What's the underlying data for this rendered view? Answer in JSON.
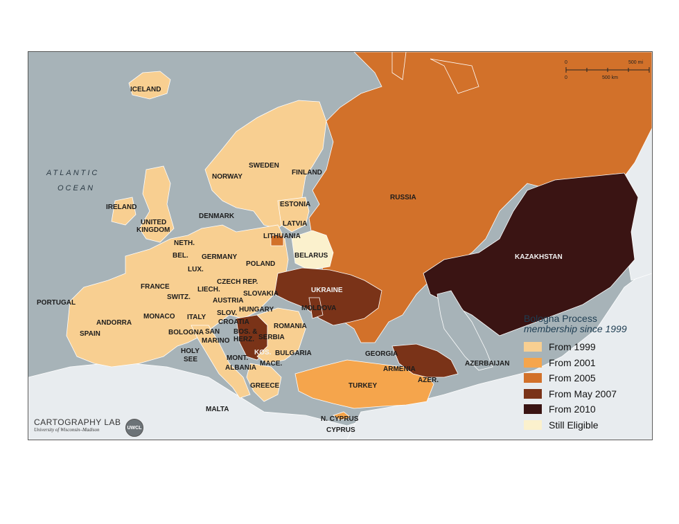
{
  "colors": {
    "sea": "#a7b3b8",
    "non_member": "#e8ecef",
    "from_1999": "#f8cf91",
    "from_2001": "#f5a54c",
    "from_2005": "#d2712a",
    "from_may_2007": "#7a3318",
    "from_2010": "#3a1413",
    "still_eligible": "#fbf1cd"
  },
  "legend": {
    "title": "Bologna Process",
    "subtitle": "membership since 1999",
    "items": [
      {
        "key": "from_1999",
        "label": "From 1999"
      },
      {
        "key": "from_2001",
        "label": "From 2001"
      },
      {
        "key": "from_2005",
        "label": "From 2005"
      },
      {
        "key": "from_may_2007",
        "label": "From May 2007"
      },
      {
        "key": "from_2010",
        "label": "From 2010"
      },
      {
        "key": "still_eligible",
        "label": "Still Eligible"
      }
    ]
  },
  "scale_bar": {
    "mi_zero": "0",
    "mi_max": "500 mi",
    "km_zero": "0",
    "km_max": "500 km"
  },
  "oceans": {
    "atlantic_1": "ATLANTIC",
    "atlantic_2": "OCEAN"
  },
  "countries": {
    "iceland": "ICELAND",
    "ireland": "IRELAND",
    "uk_1": "UNITED",
    "uk_2": "KINGDOM",
    "norway": "NORWAY",
    "sweden": "SWEDEN",
    "finland": "FINLAND",
    "denmark": "DENMARK",
    "estonia": "ESTONIA",
    "latvia": "LATVIA",
    "lithuania": "LITHUANIA",
    "belarus": "BELARUS",
    "netherlands": "NETH.",
    "belgium": "BEL.",
    "luxembourg": "LUX.",
    "germany": "GERMANY",
    "poland": "POLAND",
    "france": "FRANCE",
    "liechtenstein": "LIECH.",
    "czech": "CZECH REP.",
    "switzerland": "SWITZ.",
    "austria": "AUSTRIA",
    "slovakia": "SLOVAKIA",
    "portugal": "PORTUGAL",
    "andorra": "ANDORRA",
    "monaco": "MONACO",
    "spain": "SPAIN",
    "italy": "ITALY",
    "bologna": "BOLOGNA",
    "slovenia": "SLOV.",
    "hungary": "HUNGARY",
    "croatia": "CROATIA",
    "san_marino_1": "SAN",
    "san_marino_2": "MARINO",
    "holy_see_1": "HOLY",
    "holy_see_2": "SEE",
    "bosnia_1": "BOS. &",
    "bosnia_2": "HERZ.",
    "serbia": "SERBIA",
    "romania": "ROMANIA",
    "montenegro": "MONT.",
    "kosovo": "KOS.",
    "albania": "ALBANIA",
    "macedonia": "MACE.",
    "bulgaria": "BULGARIA",
    "greece": "GREECE",
    "malta": "MALTA",
    "n_cyprus": "N. CYPRUS",
    "cyprus": "CYPRUS",
    "ukraine": "UKRAINE",
    "moldova": "MOLDOVA",
    "russia": "RUSSIA",
    "kazakhstan": "KAZAKHSTAN",
    "georgia": "GEORGIA",
    "armenia": "ARMENIA",
    "azerbaijan": "AZERBAIJAN",
    "azer": "AZER.",
    "turkey": "TURKEY"
  },
  "credit": {
    "line1": "CARTOGRAPHY LAB",
    "line2": "University of Wisconsin–Madison",
    "logo": "UWCL"
  }
}
